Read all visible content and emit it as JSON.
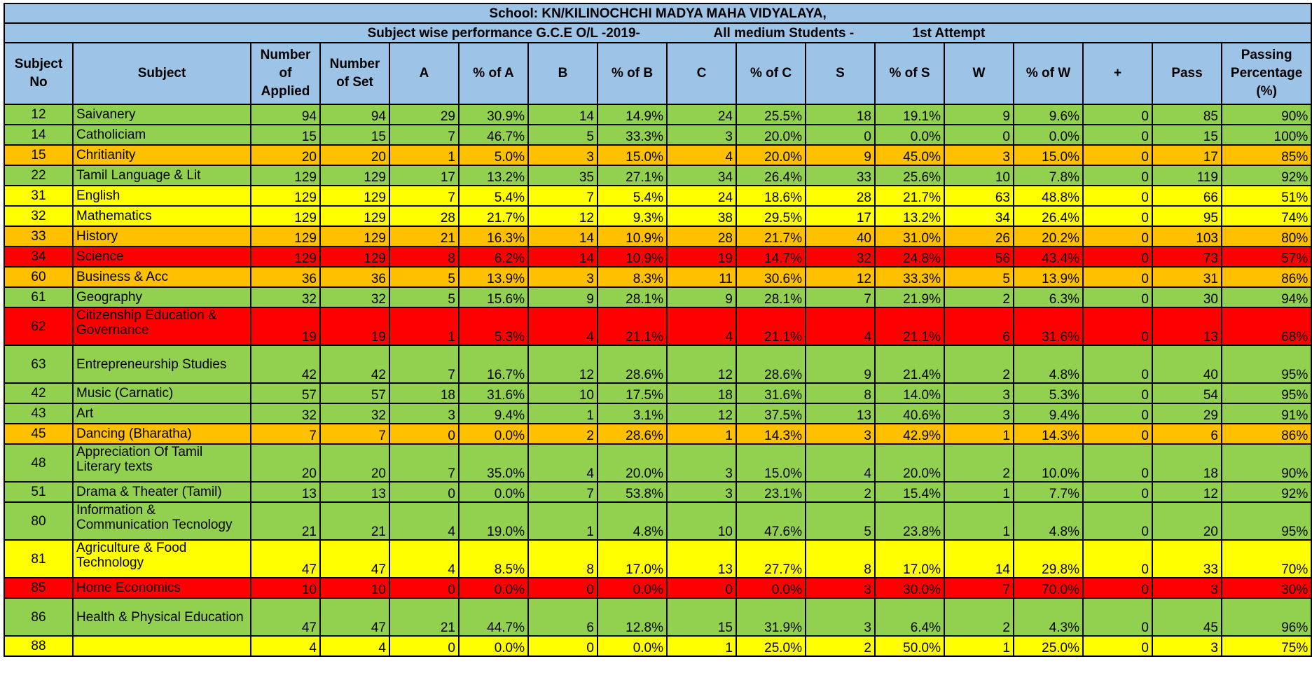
{
  "title": "School: KN/KILINOCHCHI MADYA MAHA VIDYALAYA,",
  "subtitle": {
    "part1": "Subject wise performance G.C.E O/L -2019-",
    "part2": "All medium Students -",
    "part3": "1st Attempt"
  },
  "headers": [
    "Subject No",
    "Subject",
    "Number of Applied",
    "Number of Set",
    "A",
    "% of A",
    "B",
    "% of B",
    "C",
    "% of C",
    "S",
    "% of S",
    "W",
    "% of W",
    "+",
    "Pass",
    "Passing Percentage (%)"
  ],
  "colors": {
    "header": "#9dc3e6",
    "green": "#92d050",
    "orange": "#ffc000",
    "yellow": "#ffff00",
    "red": "#ff0000"
  },
  "rows": [
    {
      "no": "12",
      "subject": "Saivanery",
      "applied": "94",
      "set": "94",
      "a": "29",
      "pa": "30.9%",
      "b": "14",
      "pb": "14.9%",
      "c": "24",
      "pc": "25.5%",
      "s": "18",
      "ps": "19.1%",
      "w": "9",
      "pw": "9.6%",
      "plus": "0",
      "pass": "85",
      "pp": "90%",
      "status": "green"
    },
    {
      "no": "14",
      "subject": "Catholiciam",
      "applied": "15",
      "set": "15",
      "a": "7",
      "pa": "46.7%",
      "b": "5",
      "pb": "33.3%",
      "c": "3",
      "pc": "20.0%",
      "s": "0",
      "ps": "0.0%",
      "w": "0",
      "pw": "0.0%",
      "plus": "0",
      "pass": "15",
      "pp": "100%",
      "status": "green"
    },
    {
      "no": "15",
      "subject": "Chritianity",
      "applied": "20",
      "set": "20",
      "a": "1",
      "pa": "5.0%",
      "b": "3",
      "pb": "15.0%",
      "c": "4",
      "pc": "20.0%",
      "s": "9",
      "ps": "45.0%",
      "w": "3",
      "pw": "15.0%",
      "plus": "0",
      "pass": "17",
      "pp": "85%",
      "status": "orange"
    },
    {
      "no": "22",
      "subject": "Tamil Language & Lit",
      "applied": "129",
      "set": "129",
      "a": "17",
      "pa": "13.2%",
      "b": "35",
      "pb": "27.1%",
      "c": "34",
      "pc": "26.4%",
      "s": "33",
      "ps": "25.6%",
      "w": "10",
      "pw": "7.8%",
      "plus": "0",
      "pass": "119",
      "pp": "92%",
      "status": "green"
    },
    {
      "no": "31",
      "subject": "English",
      "applied": "129",
      "set": "129",
      "a": "7",
      "pa": "5.4%",
      "b": "7",
      "pb": "5.4%",
      "c": "24",
      "pc": "18.6%",
      "s": "28",
      "ps": "21.7%",
      "w": "63",
      "pw": "48.8%",
      "plus": "0",
      "pass": "66",
      "pp": "51%",
      "status": "yellow"
    },
    {
      "no": "32",
      "subject": "Mathematics",
      "applied": "129",
      "set": "129",
      "a": "28",
      "pa": "21.7%",
      "b": "12",
      "pb": "9.3%",
      "c": "38",
      "pc": "29.5%",
      "s": "17",
      "ps": "13.2%",
      "w": "34",
      "pw": "26.4%",
      "plus": "0",
      "pass": "95",
      "pp": "74%",
      "status": "yellow"
    },
    {
      "no": "33",
      "subject": "History",
      "applied": "129",
      "set": "129",
      "a": "21",
      "pa": "16.3%",
      "b": "14",
      "pb": "10.9%",
      "c": "28",
      "pc": "21.7%",
      "s": "40",
      "ps": "31.0%",
      "w": "26",
      "pw": "20.2%",
      "plus": "0",
      "pass": "103",
      "pp": "80%",
      "status": "orange"
    },
    {
      "no": "34",
      "subject": "Science",
      "applied": "129",
      "set": "129",
      "a": "8",
      "pa": "6.2%",
      "b": "14",
      "pb": "10.9%",
      "c": "19",
      "pc": "14.7%",
      "s": "32",
      "ps": "24.8%",
      "w": "56",
      "pw": "43.4%",
      "plus": "0",
      "pass": "73",
      "pp": "57%",
      "status": "red"
    },
    {
      "no": "60",
      "subject": "Business & Acc",
      "applied": "36",
      "set": "36",
      "a": "5",
      "pa": "13.9%",
      "b": "3",
      "pb": "8.3%",
      "c": "11",
      "pc": "30.6%",
      "s": "12",
      "ps": "33.3%",
      "w": "5",
      "pw": "13.9%",
      "plus": "0",
      "pass": "31",
      "pp": "86%",
      "status": "orange"
    },
    {
      "no": "61",
      "subject": "Geography",
      "applied": "32",
      "set": "32",
      "a": "5",
      "pa": "15.6%",
      "b": "9",
      "pb": "28.1%",
      "c": "9",
      "pc": "28.1%",
      "s": "7",
      "ps": "21.9%",
      "w": "2",
      "pw": "6.3%",
      "plus": "0",
      "pass": "30",
      "pp": "94%",
      "status": "green"
    },
    {
      "no": "62",
      "subject": "Citizenship Education & Governance",
      "applied": "19",
      "set": "19",
      "a": "1",
      "pa": "5.3%",
      "b": "4",
      "pb": "21.1%",
      "c": "4",
      "pc": "21.1%",
      "s": "4",
      "ps": "21.1%",
      "w": "6",
      "pw": "31.6%",
      "plus": "0",
      "pass": "13",
      "pp": "68%",
      "status": "red",
      "tall": true
    },
    {
      "no": "63",
      "subject": "Entrepreneurship Studies",
      "applied": "42",
      "set": "42",
      "a": "7",
      "pa": "16.7%",
      "b": "12",
      "pb": "28.6%",
      "c": "12",
      "pc": "28.6%",
      "s": "9",
      "ps": "21.4%",
      "w": "2",
      "pw": "4.8%",
      "plus": "0",
      "pass": "40",
      "pp": "95%",
      "status": "green",
      "tall": true,
      "mid": true
    },
    {
      "no": "42",
      "subject": "Music (Carnatic)",
      "applied": "57",
      "set": "57",
      "a": "18",
      "pa": "31.6%",
      "b": "10",
      "pb": "17.5%",
      "c": "18",
      "pc": "31.6%",
      "s": "8",
      "ps": "14.0%",
      "w": "3",
      "pw": "5.3%",
      "plus": "0",
      "pass": "54",
      "pp": "95%",
      "status": "green"
    },
    {
      "no": "43",
      "subject": "Art",
      "applied": "32",
      "set": "32",
      "a": "3",
      "pa": "9.4%",
      "b": "1",
      "pb": "3.1%",
      "c": "12",
      "pc": "37.5%",
      "s": "13",
      "ps": "40.6%",
      "w": "3",
      "pw": "9.4%",
      "plus": "0",
      "pass": "29",
      "pp": "91%",
      "status": "green"
    },
    {
      "no": "45",
      "subject": "Dancing (Bharatha)",
      "applied": "7",
      "set": "7",
      "a": "0",
      "pa": "0.0%",
      "b": "2",
      "pb": "28.6%",
      "c": "1",
      "pc": "14.3%",
      "s": "3",
      "ps": "42.9%",
      "w": "1",
      "pw": "14.3%",
      "plus": "0",
      "pass": "6",
      "pp": "86%",
      "status": "orange"
    },
    {
      "no": "48",
      "subject": "Appreciation Of Tamil Literary texts",
      "applied": "20",
      "set": "20",
      "a": "7",
      "pa": "35.0%",
      "b": "4",
      "pb": "20.0%",
      "c": "3",
      "pc": "15.0%",
      "s": "4",
      "ps": "20.0%",
      "w": "2",
      "pw": "10.0%",
      "plus": "0",
      "pass": "18",
      "pp": "90%",
      "status": "green",
      "tall": true
    },
    {
      "no": "51",
      "subject": "Drama & Theater (Tamil)",
      "applied": "13",
      "set": "13",
      "a": "0",
      "pa": "0.0%",
      "b": "7",
      "pb": "53.8%",
      "c": "3",
      "pc": "23.1%",
      "s": "2",
      "ps": "15.4%",
      "w": "1",
      "pw": "7.7%",
      "plus": "0",
      "pass": "12",
      "pp": "92%",
      "status": "green"
    },
    {
      "no": "80",
      "subject": "Information & Communication Tecnology",
      "applied": "21",
      "set": "21",
      "a": "4",
      "pa": "19.0%",
      "b": "1",
      "pb": "4.8%",
      "c": "10",
      "pc": "47.6%",
      "s": "5",
      "ps": "23.8%",
      "w": "1",
      "pw": "4.8%",
      "plus": "0",
      "pass": "20",
      "pp": "95%",
      "status": "green",
      "tall": true
    },
    {
      "no": "81",
      "subject": "Agriculture & Food Technology",
      "applied": "47",
      "set": "47",
      "a": "4",
      "pa": "8.5%",
      "b": "8",
      "pb": "17.0%",
      "c": "13",
      "pc": "27.7%",
      "s": "8",
      "ps": "17.0%",
      "w": "14",
      "pw": "29.8%",
      "plus": "0",
      "pass": "33",
      "pp": "70%",
      "status": "yellow",
      "tall": true
    },
    {
      "no": "85",
      "subject": "Home Economics",
      "applied": "10",
      "set": "10",
      "a": "0",
      "pa": "0.0%",
      "b": "0",
      "pb": "0.0%",
      "c": "0",
      "pc": "0.0%",
      "s": "3",
      "ps": "30.0%",
      "w": "7",
      "pw": "70.0%",
      "plus": "0",
      "pass": "3",
      "pp": "30%",
      "status": "red"
    },
    {
      "no": "86",
      "subject": "Health & Physical Education",
      "applied": "47",
      "set": "47",
      "a": "21",
      "pa": "44.7%",
      "b": "6",
      "pb": "12.8%",
      "c": "15",
      "pc": "31.9%",
      "s": "3",
      "ps": "6.4%",
      "w": "2",
      "pw": "4.3%",
      "plus": "0",
      "pass": "45",
      "pp": "96%",
      "status": "green",
      "tall": true,
      "mid": true
    },
    {
      "no": "88",
      "subject": "",
      "applied": "4",
      "set": "4",
      "a": "0",
      "pa": "0.0%",
      "b": "0",
      "pb": "0.0%",
      "c": "1",
      "pc": "25.0%",
      "s": "2",
      "ps": "50.0%",
      "w": "1",
      "pw": "25.0%",
      "plus": "0",
      "pass": "3",
      "pp": "75%",
      "status": "yellow"
    }
  ]
}
